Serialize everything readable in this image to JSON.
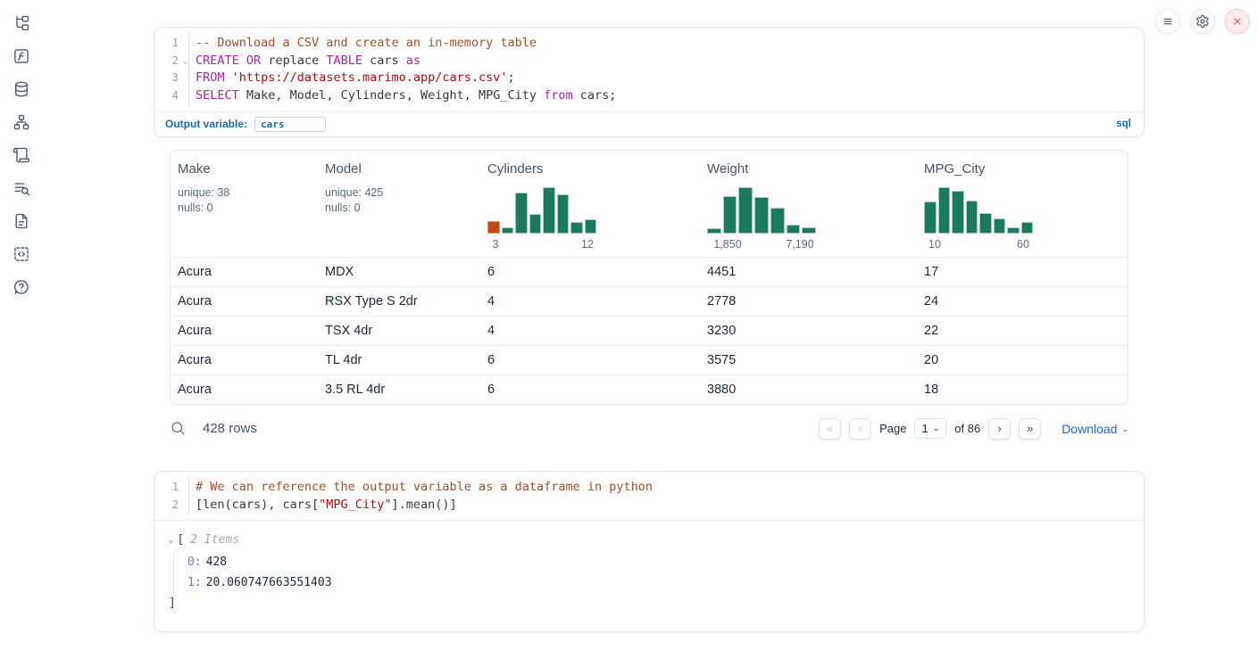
{
  "icons": {
    "chevron_down": "⌄"
  },
  "colors": {
    "histogram_green": "#1a7a60",
    "histogram_orange": "#c24914",
    "label_blue": "#1b6ca8",
    "link_blue": "#2563eb",
    "close_red": "#e25555"
  },
  "sidebar": {
    "items": [
      "file-tree",
      "functions",
      "database",
      "dependency-graph",
      "logs",
      "search-list",
      "document",
      "snippets",
      "help"
    ]
  },
  "topbar": {
    "buttons": [
      "hamburger-menu",
      "gear",
      "close"
    ]
  },
  "sql_cell": {
    "lines": [
      {
        "num": "1",
        "fold": false,
        "tokens": [
          [
            "com",
            "-- Download a CSV and create an in-memory table"
          ]
        ]
      },
      {
        "num": "2",
        "fold": true,
        "tokens": [
          [
            "kw",
            "CREATE"
          ],
          [
            "pl",
            " "
          ],
          [
            "kw",
            "OR"
          ],
          [
            "pl",
            " replace "
          ],
          [
            "kw",
            "TABLE"
          ],
          [
            "pl",
            " cars "
          ],
          [
            "kw",
            "as"
          ]
        ]
      },
      {
        "num": "3",
        "fold": false,
        "tokens": [
          [
            "kw",
            "FROM"
          ],
          [
            "pl",
            " "
          ],
          [
            "str",
            "'https://datasets.marimo.app/cars.csv'"
          ],
          [
            "pl",
            ";"
          ]
        ]
      },
      {
        "num": "4",
        "fold": false,
        "tokens": [
          [
            "kw",
            "SELECT"
          ],
          [
            "pl",
            " Make, Model, Cylinders, Weight, MPG_City "
          ],
          [
            "kw",
            "from"
          ],
          [
            "pl",
            " cars;"
          ]
        ]
      }
    ],
    "output_variable_label": "Output variable:",
    "output_variable_value": "cars",
    "language_badge": "sql"
  },
  "table": {
    "columns": [
      {
        "name": "Make",
        "stats": [
          "unique: 38",
          "nulls: 0"
        ]
      },
      {
        "name": "Model",
        "stats": [
          "unique: 425",
          "nulls: 0"
        ]
      },
      {
        "name": "Cylinders",
        "histogram": {
          "min": "3",
          "max": "12",
          "bars": [
            26,
            14,
            88,
            42,
            100,
            84,
            24,
            30
          ],
          "first_bar_orange": true
        }
      },
      {
        "name": "Weight",
        "histogram": {
          "min": "1,850",
          "max": "7,190",
          "bars": [
            12,
            80,
            100,
            78,
            55,
            18,
            13
          ],
          "first_bar_orange": false
        }
      },
      {
        "name": "MPG_City",
        "histogram": {
          "min": "10",
          "max": "60",
          "bars": [
            68,
            100,
            92,
            70,
            44,
            32,
            14,
            25
          ],
          "first_bar_orange": false
        }
      }
    ],
    "rows": [
      [
        "Acura",
        "MDX",
        "6",
        "4451",
        "17"
      ],
      [
        "Acura",
        "RSX Type S 2dr",
        "4",
        "2778",
        "24"
      ],
      [
        "Acura",
        "TSX 4dr",
        "4",
        "3230",
        "22"
      ],
      [
        "Acura",
        "TL 4dr",
        "6",
        "3575",
        "20"
      ],
      [
        "Acura",
        "3.5 RL 4dr",
        "6",
        "3880",
        "18"
      ]
    ],
    "footer": {
      "row_count": "428 rows",
      "pagination": {
        "first": "«",
        "prev": "‹",
        "page_label": "Page",
        "page_value": "1",
        "of_label": "of 86",
        "next": "›",
        "last": "»"
      },
      "download_label": "Download"
    }
  },
  "python_cell": {
    "lines": [
      {
        "num": "1",
        "fold": false,
        "tokens": [
          [
            "com",
            "# We can reference the output variable as a dataframe in python"
          ]
        ]
      },
      {
        "num": "2",
        "fold": false,
        "tokens": [
          [
            "pl",
            "[len(cars), cars["
          ],
          [
            "str",
            "\"MPG_City\""
          ],
          [
            "pl",
            "].mean()]"
          ]
        ]
      }
    ],
    "output": {
      "bracket_open": "[",
      "items_label": "2 Items",
      "entries": [
        {
          "key": "0:",
          "value": "428"
        },
        {
          "key": "1:",
          "value": "20.060747663551403"
        }
      ],
      "bracket_close": "]"
    }
  }
}
